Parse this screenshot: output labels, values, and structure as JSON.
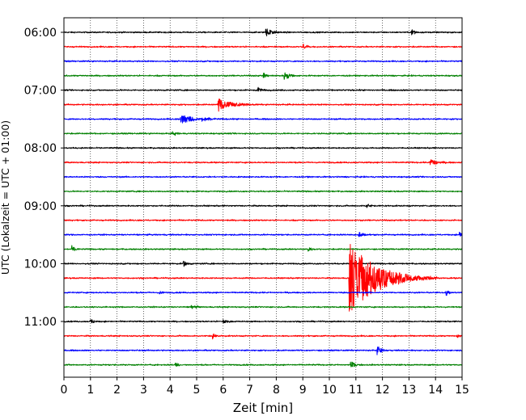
{
  "chart_data": {
    "type": "line",
    "title": "",
    "xlabel": "Zeit  [min]",
    "ylabel": "UTC (Lokalzeit = UTC + 01:00)",
    "xlim": [
      0,
      15
    ],
    "x_ticks": [
      "0",
      "1",
      "2",
      "3",
      "4",
      "5",
      "6",
      "7",
      "8",
      "9",
      "10",
      "11",
      "12",
      "13",
      "14",
      "15"
    ],
    "y_ticks": [
      "06:00",
      "07:00",
      "08:00",
      "09:00",
      "10:00",
      "11:00"
    ],
    "grid": "vertical dotted lines at each minute",
    "colors": [
      "#000000",
      "#ff0000",
      "#0000ff",
      "#008000"
    ],
    "row_interval_minutes": 15,
    "series": [
      {
        "label": "06:00",
        "color": "#000000",
        "noise": 0.35,
        "events": [
          {
            "t": 7.6,
            "amp": 1.2,
            "dur": 0.6
          },
          {
            "t": 13.1,
            "amp": 0.8,
            "dur": 0.3
          }
        ]
      },
      {
        "label": "06:15",
        "color": "#ff0000",
        "noise": 0.35,
        "events": [
          {
            "t": 9.0,
            "amp": 0.7,
            "dur": 0.4
          }
        ]
      },
      {
        "label": "06:30",
        "color": "#0000ff",
        "noise": 0.35,
        "events": []
      },
      {
        "label": "06:45",
        "color": "#008000",
        "noise": 0.35,
        "events": [
          {
            "t": 8.3,
            "amp": 1.3,
            "dur": 0.4
          },
          {
            "t": 7.5,
            "amp": 0.8,
            "dur": 0.3
          }
        ]
      },
      {
        "label": "07:00",
        "color": "#000000",
        "noise": 0.35,
        "events": [
          {
            "t": 7.3,
            "amp": 0.8,
            "dur": 0.3
          }
        ]
      },
      {
        "label": "07:15",
        "color": "#ff0000",
        "noise": 0.35,
        "events": [
          {
            "t": 5.8,
            "amp": 1.8,
            "dur": 1.0
          }
        ]
      },
      {
        "label": "07:30",
        "color": "#0000ff",
        "noise": 0.35,
        "events": [
          {
            "t": 4.4,
            "amp": 1.5,
            "dur": 0.8
          },
          {
            "t": 5.2,
            "amp": 0.8,
            "dur": 0.6
          }
        ]
      },
      {
        "label": "07:45",
        "color": "#008000",
        "noise": 0.35,
        "events": [
          {
            "t": 4.1,
            "amp": 0.7,
            "dur": 0.3
          }
        ]
      },
      {
        "label": "08:00",
        "color": "#000000",
        "noise": 0.35,
        "events": []
      },
      {
        "label": "08:15",
        "color": "#ff0000",
        "noise": 0.35,
        "events": [
          {
            "t": 13.8,
            "amp": 0.9,
            "dur": 0.6
          }
        ]
      },
      {
        "label": "08:30",
        "color": "#0000ff",
        "noise": 0.35,
        "events": []
      },
      {
        "label": "08:45",
        "color": "#008000",
        "noise": 0.35,
        "events": []
      },
      {
        "label": "09:00",
        "color": "#000000",
        "noise": 0.35,
        "events": [
          {
            "t": 11.4,
            "amp": 0.6,
            "dur": 0.3
          }
        ]
      },
      {
        "label": "09:15",
        "color": "#ff0000",
        "noise": 0.35,
        "events": []
      },
      {
        "label": "09:30",
        "color": "#0000ff",
        "noise": 0.35,
        "events": [
          {
            "t": 11.1,
            "amp": 0.7,
            "dur": 0.4
          },
          {
            "t": 14.9,
            "amp": 0.8,
            "dur": 0.2
          }
        ]
      },
      {
        "label": "09:45",
        "color": "#008000",
        "noise": 0.35,
        "events": [
          {
            "t": 0.3,
            "amp": 0.9,
            "dur": 0.3
          },
          {
            "t": 9.2,
            "amp": 0.6,
            "dur": 0.3
          }
        ]
      },
      {
        "label": "10:00",
        "color": "#000000",
        "noise": 0.35,
        "events": [
          {
            "t": 4.5,
            "amp": 0.8,
            "dur": 0.3
          }
        ]
      },
      {
        "label": "10:15",
        "color": "#ff0000",
        "noise": 0.35,
        "events": [
          {
            "t": 10.75,
            "amp": 9.5,
            "dur": 2.2
          }
        ]
      },
      {
        "label": "10:30",
        "color": "#0000ff",
        "noise": 0.35,
        "events": [
          {
            "t": 14.4,
            "amp": 0.8,
            "dur": 0.3
          },
          {
            "t": 3.6,
            "amp": 0.6,
            "dur": 0.2
          }
        ]
      },
      {
        "label": "10:45",
        "color": "#008000",
        "noise": 0.35,
        "events": [
          {
            "t": 4.8,
            "amp": 0.7,
            "dur": 0.3
          }
        ]
      },
      {
        "label": "11:00",
        "color": "#000000",
        "noise": 0.35,
        "events": [
          {
            "t": 6.0,
            "amp": 0.8,
            "dur": 0.3
          },
          {
            "t": 1.0,
            "amp": 0.6,
            "dur": 0.3
          }
        ]
      },
      {
        "label": "11:15",
        "color": "#ff0000",
        "noise": 0.35,
        "events": [
          {
            "t": 5.6,
            "amp": 0.9,
            "dur": 0.3
          },
          {
            "t": 14.8,
            "amp": 0.7,
            "dur": 0.2
          }
        ]
      },
      {
        "label": "11:30",
        "color": "#0000ff",
        "noise": 0.35,
        "events": [
          {
            "t": 11.8,
            "amp": 1.0,
            "dur": 0.4
          }
        ]
      },
      {
        "label": "11:45",
        "color": "#008000",
        "noise": 0.35,
        "events": [
          {
            "t": 10.8,
            "amp": 0.9,
            "dur": 0.4
          },
          {
            "t": 4.2,
            "amp": 0.6,
            "dur": 0.3
          }
        ]
      }
    ]
  }
}
